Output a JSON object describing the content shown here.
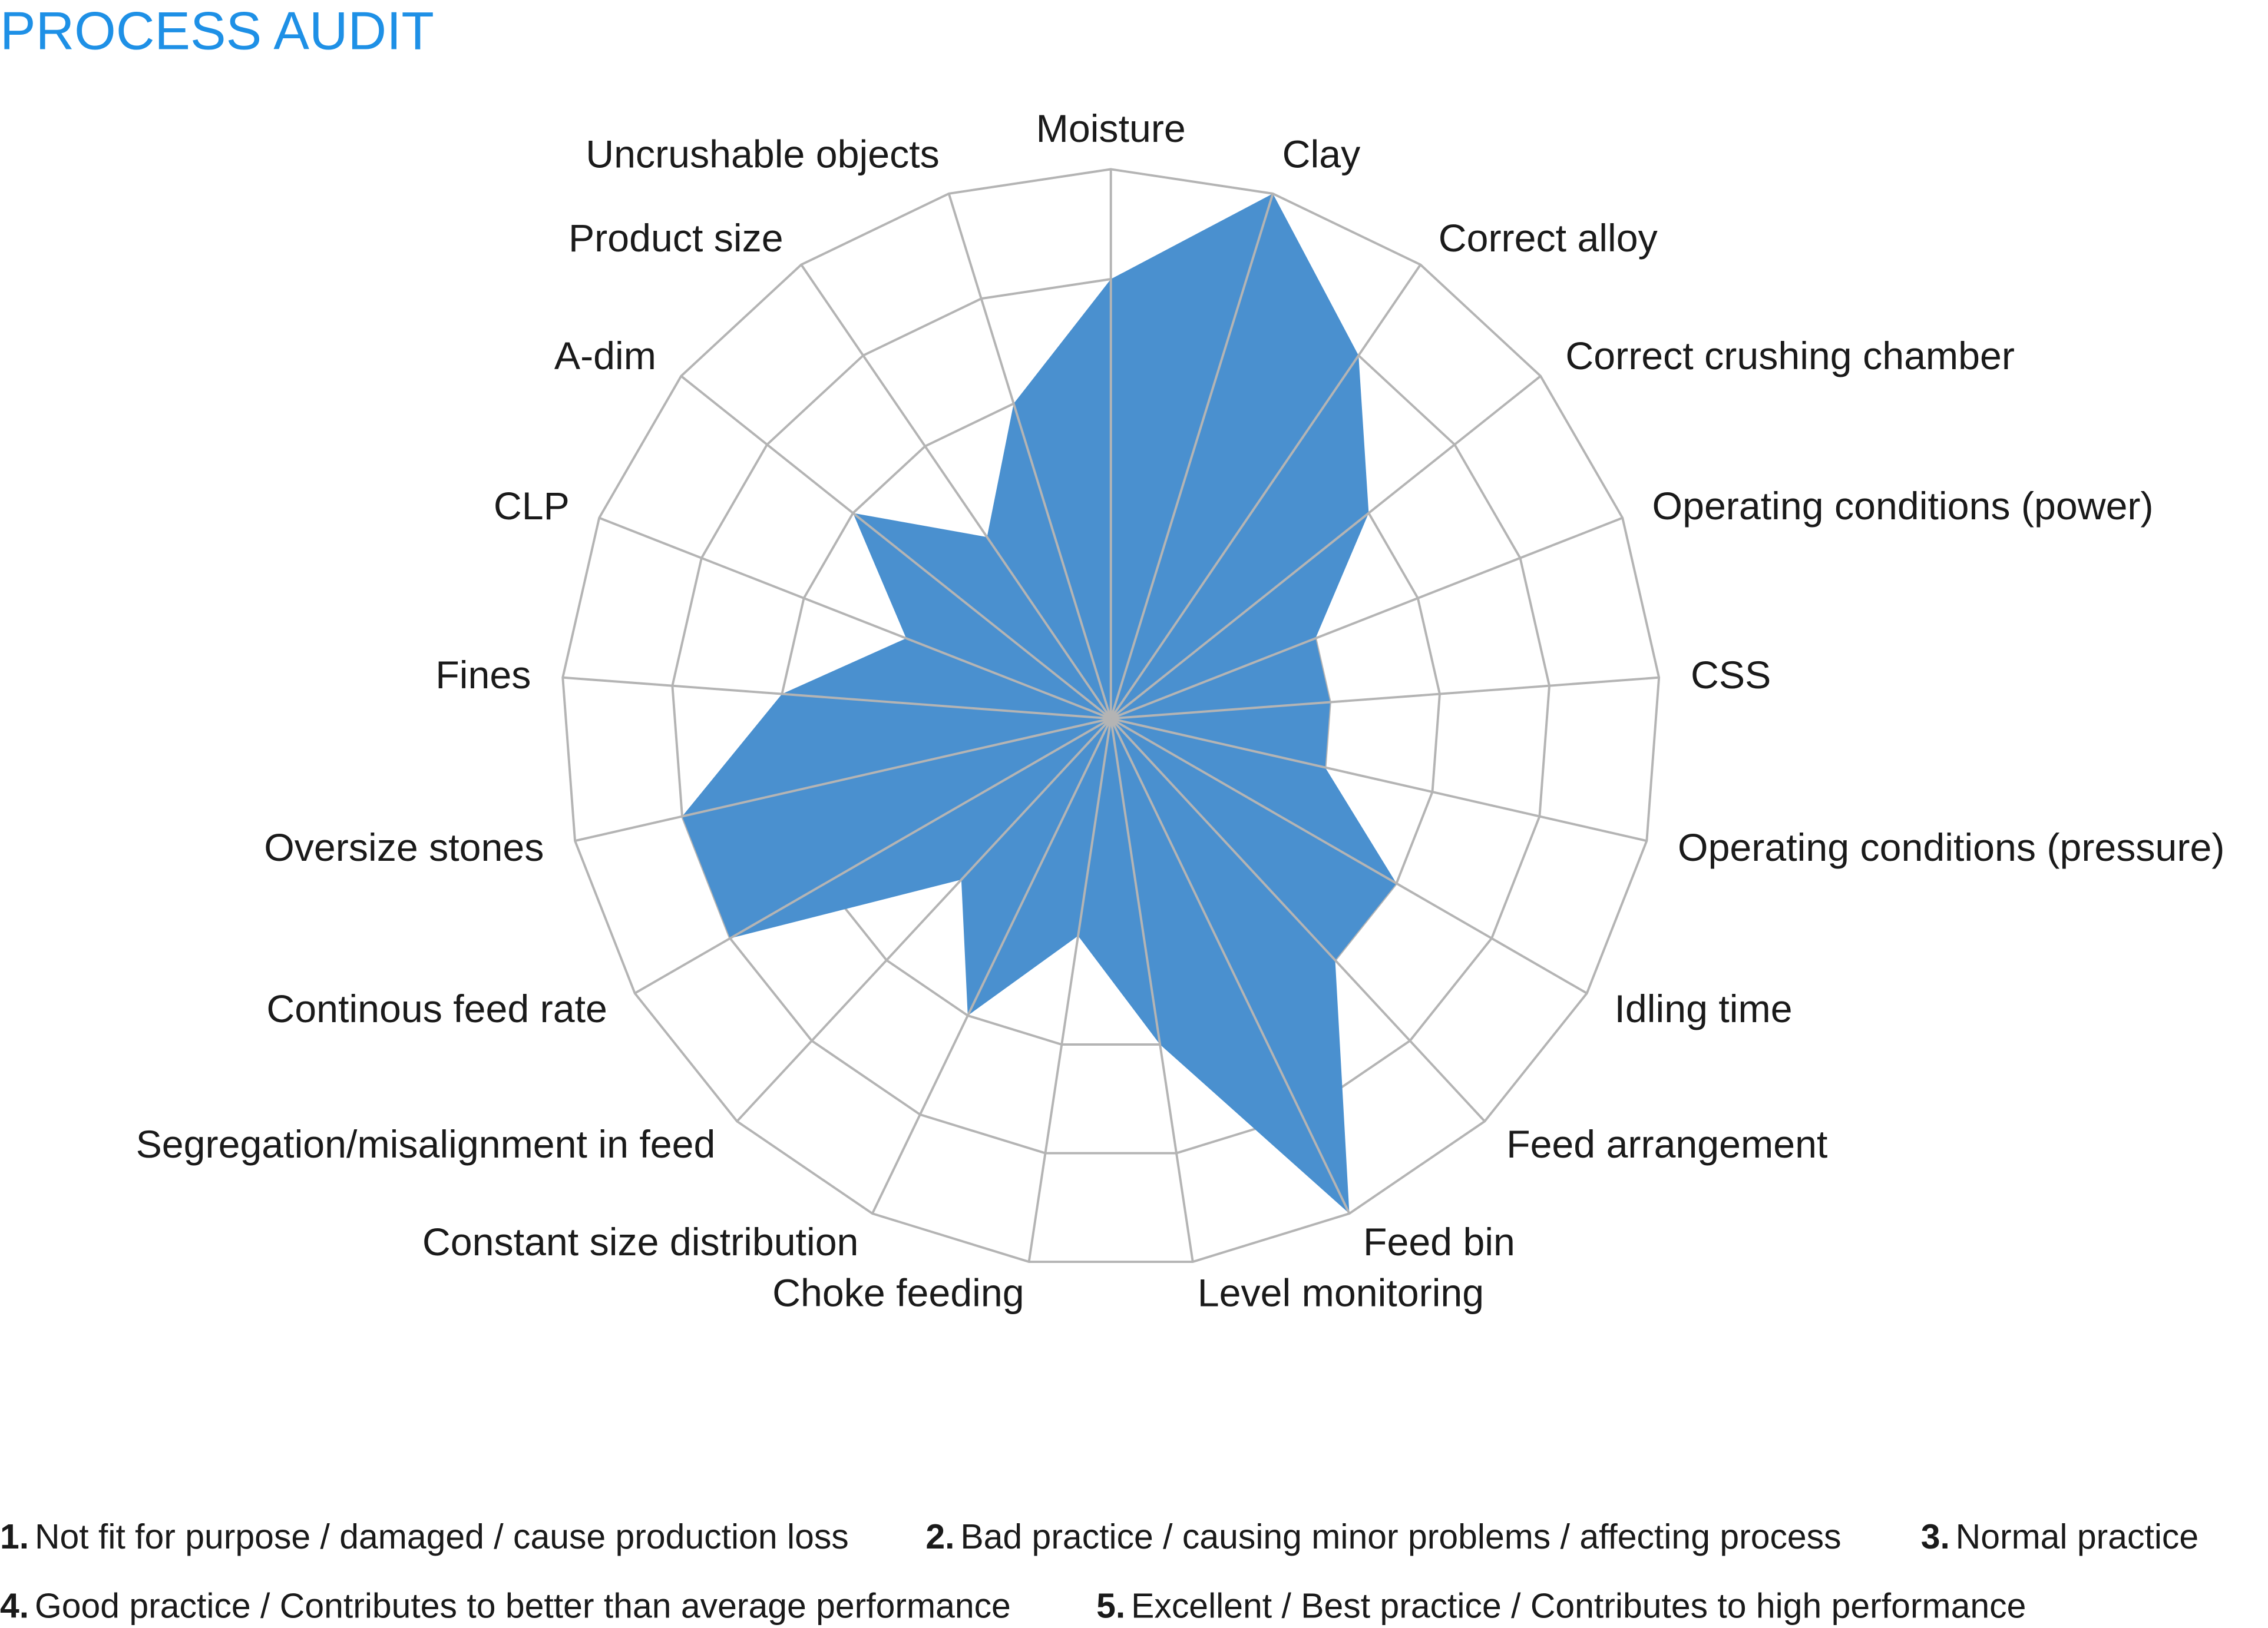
{
  "title": "PROCESS AUDIT",
  "chart_data": {
    "type": "radar",
    "title": "PROCESS AUDIT",
    "range": [
      0,
      5
    ],
    "levels": 5,
    "fill_color": "#4a90cf",
    "grid_color": "#b4b4b4",
    "title_color": "#1e90e6",
    "axes": [
      "Moisture",
      "Clay",
      "Correct alloy",
      "Correct crushing chamber",
      "Operating conditions (power)",
      "CSS",
      "Operating conditions (pressure)",
      "Idling time",
      "Feed arrangement",
      "Feed bin",
      "Level monitoring",
      "Choke feeding",
      "Constant size distribution",
      "Segregation/misalignment in feed",
      "Continous feed rate",
      "Oversize stones",
      "Fines",
      "CLP",
      "A-dim",
      "Product size",
      "Uncrushable objects"
    ],
    "values": [
      4,
      5,
      4,
      3,
      2,
      2,
      2,
      3,
      3,
      5,
      3,
      2,
      3,
      2,
      4,
      4,
      3,
      2,
      3,
      2,
      3
    ]
  },
  "legend": [
    {
      "num": "1.",
      "text": "Not fit for purpose / damaged / cause production loss"
    },
    {
      "num": "2.",
      "text": "Bad practice / causing minor problems / affecting process"
    },
    {
      "num": "3.",
      "text": "Normal practice"
    },
    {
      "num": "4.",
      "text": "Good practice / Contributes to better than average performance"
    },
    {
      "num": "5.",
      "text": "Excellent / Best practice / Contributes to high performance"
    }
  ]
}
